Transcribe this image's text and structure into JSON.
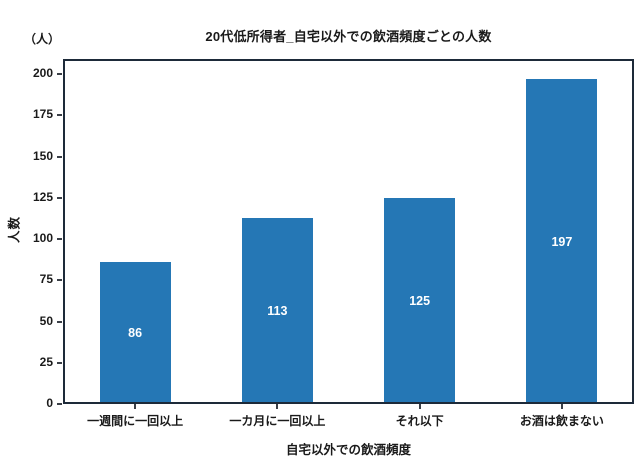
{
  "chart_data": {
    "type": "bar",
    "title": "20代低所得者_自宅以外での飲酒頻度ごとの人数",
    "unit_annotation": "（人）",
    "categories": [
      "一週間に一回以上",
      "一カ月に一回以上",
      "それ以下",
      "お酒は飲まない"
    ],
    "values": [
      86,
      113,
      125,
      197
    ],
    "bar_value_labels": [
      "86",
      "113",
      "125",
      "197"
    ],
    "xlabel": "自宅以外での飲酒頻度",
    "ylabel": "人数",
    "y_ticks": [
      0,
      25,
      50,
      75,
      100,
      125,
      150,
      175,
      200
    ],
    "ylim": [
      0,
      208
    ],
    "grid": false,
    "legend": "none",
    "colors": {
      "bar": "#2577b5",
      "value_label": "#ffffff",
      "frame": "#1d2a39",
      "tick": "#3a3f47",
      "text": "#1a1a1a"
    }
  }
}
